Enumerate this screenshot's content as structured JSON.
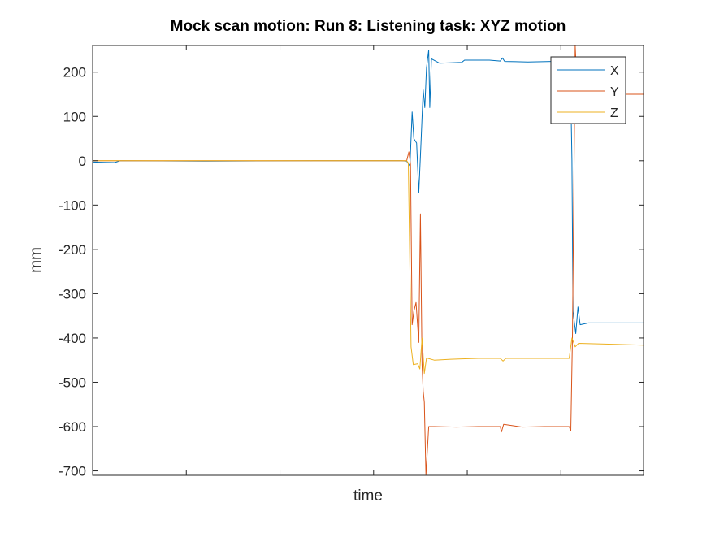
{
  "chart_data": {
    "type": "line",
    "title": "Mock scan motion: Run 8: Listening task: XYZ motion",
    "xlabel": "time",
    "ylabel": "mm",
    "xlim": [
      0,
      100
    ],
    "ylim": [
      -710,
      260
    ],
    "yticks": [
      200,
      100,
      0,
      -100,
      -200,
      -300,
      -400,
      -500,
      -600,
      -700
    ],
    "ytick_labels": [
      "200",
      "100",
      "0",
      "-100",
      "-200",
      "-300",
      "-400",
      "-500",
      "-600",
      "-700"
    ],
    "xticks": [
      0,
      17,
      34,
      51,
      68,
      85,
      100
    ],
    "grid": false,
    "legend_position": "top-right",
    "series": [
      {
        "name": "X",
        "color": "#0072BD",
        "points": [
          [
            0,
            -3
          ],
          [
            4,
            -4
          ],
          [
            5,
            0
          ],
          [
            20,
            -1
          ],
          [
            40,
            0
          ],
          [
            56,
            0
          ],
          [
            57,
            -1
          ],
          [
            57.6,
            -12
          ],
          [
            58,
            110
          ],
          [
            58.3,
            50
          ],
          [
            58.8,
            40
          ],
          [
            59.2,
            -72
          ],
          [
            59.6,
            40
          ],
          [
            60,
            160
          ],
          [
            60.3,
            120
          ],
          [
            60.6,
            210
          ],
          [
            61,
            250
          ],
          [
            61.2,
            120
          ],
          [
            61.5,
            230
          ],
          [
            63,
            220
          ],
          [
            67,
            222
          ],
          [
            67.5,
            227
          ],
          [
            72,
            227
          ],
          [
            74,
            225
          ],
          [
            74.4,
            232
          ],
          [
            74.8,
            224
          ],
          [
            79,
            223
          ],
          [
            86.7,
            225
          ],
          [
            87,
            0
          ],
          [
            87.2,
            -340
          ],
          [
            87.7,
            -390
          ],
          [
            88.1,
            -330
          ],
          [
            88.5,
            -370
          ],
          [
            90,
            -366
          ],
          [
            100,
            -366
          ]
        ]
      },
      {
        "name": "Y",
        "color": "#D95319",
        "points": [
          [
            0,
            0
          ],
          [
            20,
            0
          ],
          [
            40,
            0
          ],
          [
            56,
            0
          ],
          [
            57,
            0
          ],
          [
            57.4,
            20
          ],
          [
            57.7,
            -8
          ],
          [
            58,
            -370
          ],
          [
            58.3,
            -340
          ],
          [
            58.7,
            -320
          ],
          [
            59.2,
            -410
          ],
          [
            59.5,
            -120
          ],
          [
            59.8,
            -460
          ],
          [
            60,
            -520
          ],
          [
            60.2,
            -545
          ],
          [
            60.5,
            -710
          ],
          [
            61,
            -600
          ],
          [
            62,
            -600
          ],
          [
            66,
            -601
          ],
          [
            70,
            -600
          ],
          [
            74,
            -600
          ],
          [
            74.2,
            -612
          ],
          [
            74.6,
            -595
          ],
          [
            78,
            -601
          ],
          [
            82,
            -600
          ],
          [
            86.5,
            -600
          ],
          [
            86.8,
            -610
          ],
          [
            87.1,
            -400
          ],
          [
            87.6,
            260
          ],
          [
            88,
            150
          ],
          [
            100,
            150
          ]
        ]
      },
      {
        "name": "Z",
        "color": "#EDB120",
        "points": [
          [
            0,
            0
          ],
          [
            20,
            0
          ],
          [
            40,
            0
          ],
          [
            56,
            0
          ],
          [
            57,
            0
          ],
          [
            57.3,
            -5
          ],
          [
            57.8,
            -420
          ],
          [
            58.2,
            -460
          ],
          [
            59,
            -458
          ],
          [
            59.4,
            -470
          ],
          [
            59.8,
            -400
          ],
          [
            60.2,
            -480
          ],
          [
            60.6,
            -445
          ],
          [
            62,
            -450
          ],
          [
            65,
            -448
          ],
          [
            67,
            -447
          ],
          [
            70,
            -446
          ],
          [
            74,
            -446
          ],
          [
            74.5,
            -452
          ],
          [
            75,
            -446
          ],
          [
            80,
            -446
          ],
          [
            86.5,
            -446
          ],
          [
            87,
            -400
          ],
          [
            87.6,
            -420
          ],
          [
            88.2,
            -412
          ],
          [
            100,
            -416
          ]
        ]
      }
    ]
  }
}
